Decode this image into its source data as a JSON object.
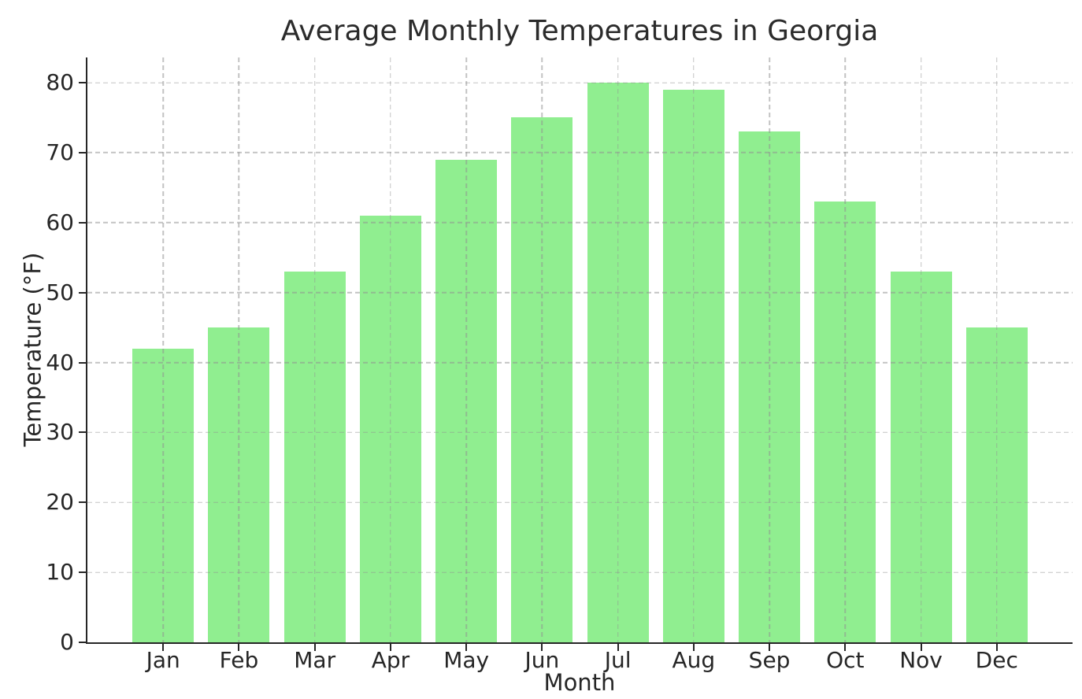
{
  "figure": {
    "background": "#ffffff"
  },
  "chart_data": {
    "type": "bar",
    "title": "Average Monthly Temperatures in Georgia",
    "xlabel": "Month",
    "ylabel": "Temperature (°F)",
    "categories": [
      "Jan",
      "Feb",
      "Mar",
      "Apr",
      "May",
      "Jun",
      "Jul",
      "Aug",
      "Sep",
      "Oct",
      "Nov",
      "Dec"
    ],
    "values": [
      42,
      45,
      53,
      61,
      69,
      75,
      80,
      79,
      73,
      63,
      53,
      45
    ],
    "yticks": [
      0,
      10,
      20,
      30,
      40,
      50,
      60,
      70,
      80
    ],
    "ylim": [
      0,
      83.6
    ],
    "grid": true,
    "grid_style": "dashed",
    "legend": null,
    "bar_color": "#90EE90",
    "grid_color": "#919191",
    "axis_color": "#262626",
    "text_color": "#262626"
  }
}
